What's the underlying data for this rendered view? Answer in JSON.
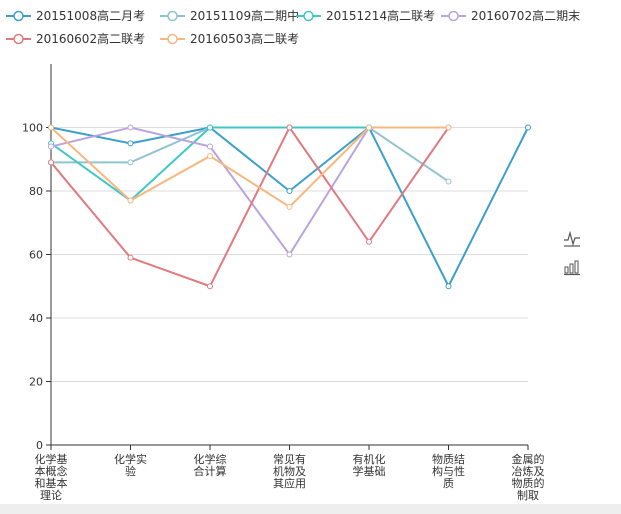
{
  "chart_data": {
    "type": "line",
    "categories": [
      "化学基本概念和基本理论",
      "化学实验",
      "化学综合计算",
      "常见有机物及其应用",
      "有机化学基础",
      "物质结构与性质",
      "金属的冶炼及物质的制取"
    ],
    "category_lines": [
      [
        "化学基",
        "本概念",
        "和基本",
        "理论"
      ],
      [
        "化学实",
        "验"
      ],
      [
        "化学综",
        "合计算"
      ],
      [
        "常见有",
        "机物及",
        "其应用"
      ],
      [
        "有机化",
        "学基础"
      ],
      [
        "物质结",
        "构与性",
        "质"
      ],
      [
        "金属的",
        "冶炼及",
        "物质的",
        "制取"
      ]
    ],
    "ylim": [
      0,
      100
    ],
    "y_axis_max": 120,
    "yticks": [
      0,
      20,
      40,
      60,
      80,
      100
    ],
    "grid": true,
    "legend_position": "top-left",
    "series": [
      {
        "name": "20151008高二月考",
        "color": "#3aa0c9",
        "values": [
          100,
          95,
          100,
          80,
          100,
          50,
          100
        ]
      },
      {
        "name": "20151109高二期中",
        "color": "#8ec3d2",
        "values": [
          89,
          89,
          100,
          100,
          100,
          83,
          null
        ]
      },
      {
        "name": "20151214高二联考",
        "color": "#3fc7c7",
        "values": [
          95,
          77,
          100,
          100,
          100,
          null,
          null
        ]
      },
      {
        "name": "20160702高二期末",
        "color": "#b9a4dd",
        "values": [
          94,
          100,
          94,
          60,
          100,
          null,
          null
        ]
      },
      {
        "name": "20160602高二联考",
        "color": "#e07a80",
        "values": [
          89,
          59,
          50,
          100,
          64,
          100,
          null
        ]
      },
      {
        "name": "20160503高二联考",
        "color": "#f8b77f",
        "values": [
          100,
          77,
          91,
          75,
          100,
          100,
          null
        ]
      }
    ]
  },
  "toolbox": {
    "line_icon": "line-chart-icon",
    "bar_icon": "bar-chart-icon"
  },
  "colors": {
    "axis": "#333333",
    "grid": "#dddddd"
  }
}
